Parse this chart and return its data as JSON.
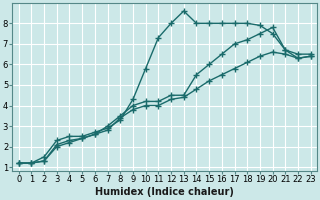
{
  "title": "",
  "xlabel": "Humidex (Indice chaleur)",
  "bg_color": "#cce8e8",
  "grid_color": "#ffffff",
  "line_color": "#1a6b6b",
  "xlim": [
    -0.5,
    23.5
  ],
  "ylim": [
    0.8,
    9.0
  ],
  "xticks": [
    0,
    1,
    2,
    3,
    4,
    5,
    6,
    7,
    8,
    9,
    10,
    11,
    12,
    13,
    14,
    15,
    16,
    17,
    18,
    19,
    20,
    21,
    22,
    23
  ],
  "yticks": [
    1,
    2,
    3,
    4,
    5,
    6,
    7,
    8
  ],
  "line1_x": [
    0,
    1,
    2,
    3,
    4,
    5,
    6,
    7,
    8,
    9,
    10,
    11,
    12,
    13,
    14,
    15,
    16,
    17,
    18,
    19,
    20,
    21,
    22,
    23
  ],
  "line1_y": [
    1.2,
    1.2,
    1.5,
    2.3,
    2.5,
    2.5,
    2.7,
    2.9,
    3.3,
    4.3,
    5.8,
    7.3,
    8.0,
    8.6,
    8.0,
    8.0,
    8.0,
    8.0,
    8.0,
    7.9,
    7.5,
    6.7,
    6.5,
    6.5
  ],
  "line2_x": [
    0,
    1,
    2,
    3,
    4,
    5,
    6,
    7,
    8,
    9,
    10,
    11,
    12,
    13,
    14,
    15,
    16,
    17,
    18,
    19,
    20,
    21,
    22,
    23
  ],
  "line2_y": [
    1.2,
    1.2,
    1.3,
    2.1,
    2.3,
    2.4,
    2.6,
    3.0,
    3.5,
    4.0,
    4.2,
    4.2,
    4.5,
    4.5,
    5.5,
    6.0,
    6.5,
    7.0,
    7.2,
    7.5,
    7.8,
    6.7,
    6.3,
    6.4
  ],
  "line3_x": [
    0,
    1,
    2,
    3,
    4,
    5,
    6,
    7,
    8,
    9,
    10,
    11,
    12,
    13,
    14,
    15,
    16,
    17,
    18,
    19,
    20,
    21,
    22,
    23
  ],
  "line3_y": [
    1.2,
    1.2,
    1.3,
    2.0,
    2.2,
    2.4,
    2.6,
    2.8,
    3.4,
    3.8,
    4.0,
    4.0,
    4.3,
    4.4,
    4.8,
    5.2,
    5.5,
    5.8,
    6.1,
    6.4,
    6.6,
    6.5,
    6.3,
    6.4
  ],
  "marker": "+",
  "markersize": 4,
  "linewidth": 1.0,
  "label_fontsize": 7,
  "tick_fontsize": 6
}
